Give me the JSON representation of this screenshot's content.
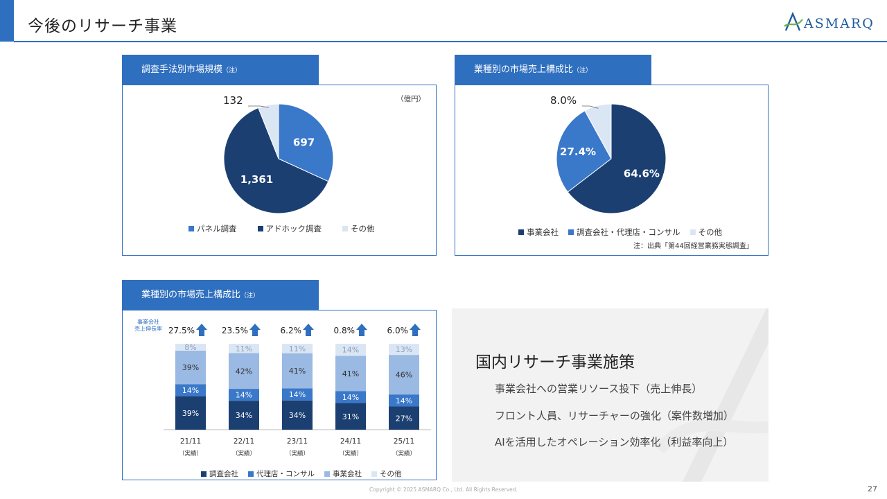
{
  "title": "今後のリサーチ事業",
  "logo_text": "ASMARQ",
  "page_number": "27",
  "copyright": "Copyright © 2025 ASMARQ Co., Ltd. All Rights Reserved.",
  "colors": {
    "accent": "#2f6fbf",
    "dark_navy": "#1c3f72",
    "mid_blue": "#3a78c9",
    "light_blue": "#9ab9e3",
    "pale_blue": "#dbe6f4"
  },
  "panel1": {
    "tab_label": "調査手法別市場規模",
    "tab_note": "（注）",
    "unit": "（億円）"
  },
  "panel2": {
    "tab_label": "業種別の市場売上構成比",
    "tab_note": "（注）",
    "source_note": "注：出典「第44回経営業務実態調査」"
  },
  "panel3": {
    "tab_label": "業種別の市場売上構成比",
    "tab_note": "（注）",
    "growth_label_line1": "事業会社",
    "growth_label_line2": "売上伸長率"
  },
  "initiatives": {
    "heading": "国内リサーチ事業施策",
    "items": [
      "事業会社への営業リソース投下（売上伸長）",
      "フロント人員、リサーチャーの強化（案件数増加）",
      "AIを活用したオペレーション効率化（利益率向上）"
    ]
  },
  "chart_data": [
    {
      "type": "pie",
      "title": "調査手法別市場規模",
      "unit": "億円",
      "slices": [
        {
          "label": "パネル調査",
          "value": 697,
          "display": "697",
          "color": "#3a78c9"
        },
        {
          "label": "アドホック調査",
          "value": 1361,
          "display": "1,361",
          "color": "#1c3f72"
        },
        {
          "label": "その他",
          "value": 132,
          "display": "132",
          "color": "#dbe6f4"
        }
      ],
      "legend": [
        "パネル調査",
        "アドホック調査",
        "その他"
      ],
      "legend_position": "bottom"
    },
    {
      "type": "pie",
      "title": "業種別の市場売上構成比",
      "unit": "%",
      "slices": [
        {
          "label": "事業会社",
          "value": 64.6,
          "display": "64.6%",
          "color": "#1c3f72"
        },
        {
          "label": "調査会社・代理店・コンサル",
          "value": 27.4,
          "display": "27.4%",
          "color": "#3a78c9"
        },
        {
          "label": "その他",
          "value": 8.0,
          "display": "8.0%",
          "color": "#dbe6f4"
        }
      ],
      "legend": [
        "事業会社",
        "調査会社・代理店・コンサル",
        "その他"
      ],
      "legend_position": "bottom"
    },
    {
      "type": "bar",
      "stacked": true,
      "title": "業種別の市場売上構成比",
      "categories": [
        "21/11",
        "22/11",
        "23/11",
        "24/11",
        "25/11"
      ],
      "category_notes": [
        "（実績）",
        "（実績）",
        "（実績）",
        "（実績）",
        "（実績）"
      ],
      "series": [
        {
          "name": "調査会社",
          "values": [
            39,
            34,
            34,
            31,
            27
          ],
          "labels": [
            "39%",
            "34%",
            "34%",
            "31%",
            "27%"
          ],
          "color": "#1c3f72"
        },
        {
          "name": "代理店・コンサル",
          "values": [
            14,
            14,
            14,
            14,
            14
          ],
          "labels": [
            "14%",
            "14%",
            "14%",
            "14%",
            "14%"
          ],
          "color": "#3a78c9"
        },
        {
          "name": "事業会社",
          "values": [
            39,
            42,
            41,
            41,
            46
          ],
          "labels": [
            "39%",
            "42%",
            "41%",
            "41%",
            "46%"
          ],
          "color": "#9ab9e3"
        },
        {
          "name": "その他",
          "values": [
            8,
            11,
            11,
            14,
            13
          ],
          "labels": [
            "8%",
            "11%",
            "11%",
            "14%",
            "13%"
          ],
          "color": "#dbe6f4"
        }
      ],
      "growth_rates": [
        "27.5%",
        "23.5%",
        "6.2%",
        "0.8%",
        "6.0%"
      ],
      "legend_position": "bottom"
    }
  ]
}
